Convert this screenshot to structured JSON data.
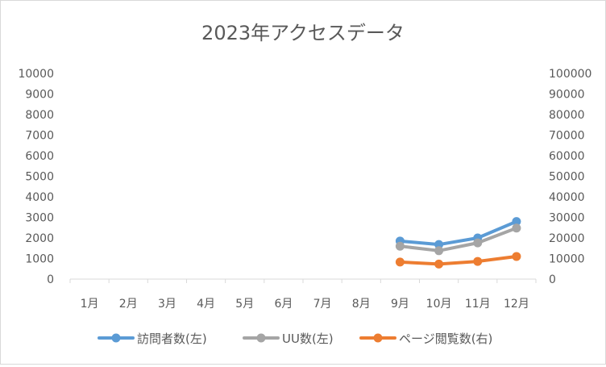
{
  "chart_data": {
    "type": "line",
    "title": "2023年アクセスデータ",
    "categories": [
      "1月",
      "2月",
      "3月",
      "4月",
      "5月",
      "6月",
      "7月",
      "8月",
      "9月",
      "10月",
      "11月",
      "12月"
    ],
    "y_left": {
      "min": 0,
      "max": 10000,
      "step": 1000,
      "ticks": [
        "0",
        "1000",
        "2000",
        "3000",
        "4000",
        "5000",
        "6000",
        "7000",
        "8000",
        "9000",
        "10000"
      ]
    },
    "y_right": {
      "min": 0,
      "max": 100000,
      "step": 10000,
      "ticks": [
        "0",
        "10000",
        "20000",
        "30000",
        "40000",
        "50000",
        "60000",
        "70000",
        "80000",
        "90000",
        "100000"
      ]
    },
    "grid": false,
    "legend_position": "bottom",
    "series": [
      {
        "name": "訪問者数(左)",
        "axis": "left",
        "color": "#5b9bd5",
        "values": [
          null,
          null,
          null,
          null,
          null,
          null,
          null,
          null,
          1850,
          1680,
          2000,
          2800
        ]
      },
      {
        "name": "UU数(左)",
        "axis": "left",
        "color": "#a5a5a5",
        "values": [
          null,
          null,
          null,
          null,
          null,
          null,
          null,
          null,
          1600,
          1380,
          1760,
          2480
        ]
      },
      {
        "name": "ページ閲覧数(右)",
        "axis": "right",
        "color": "#ed7d31",
        "values": [
          null,
          null,
          null,
          null,
          null,
          null,
          null,
          null,
          8300,
          7300,
          8600,
          11000
        ]
      }
    ]
  }
}
